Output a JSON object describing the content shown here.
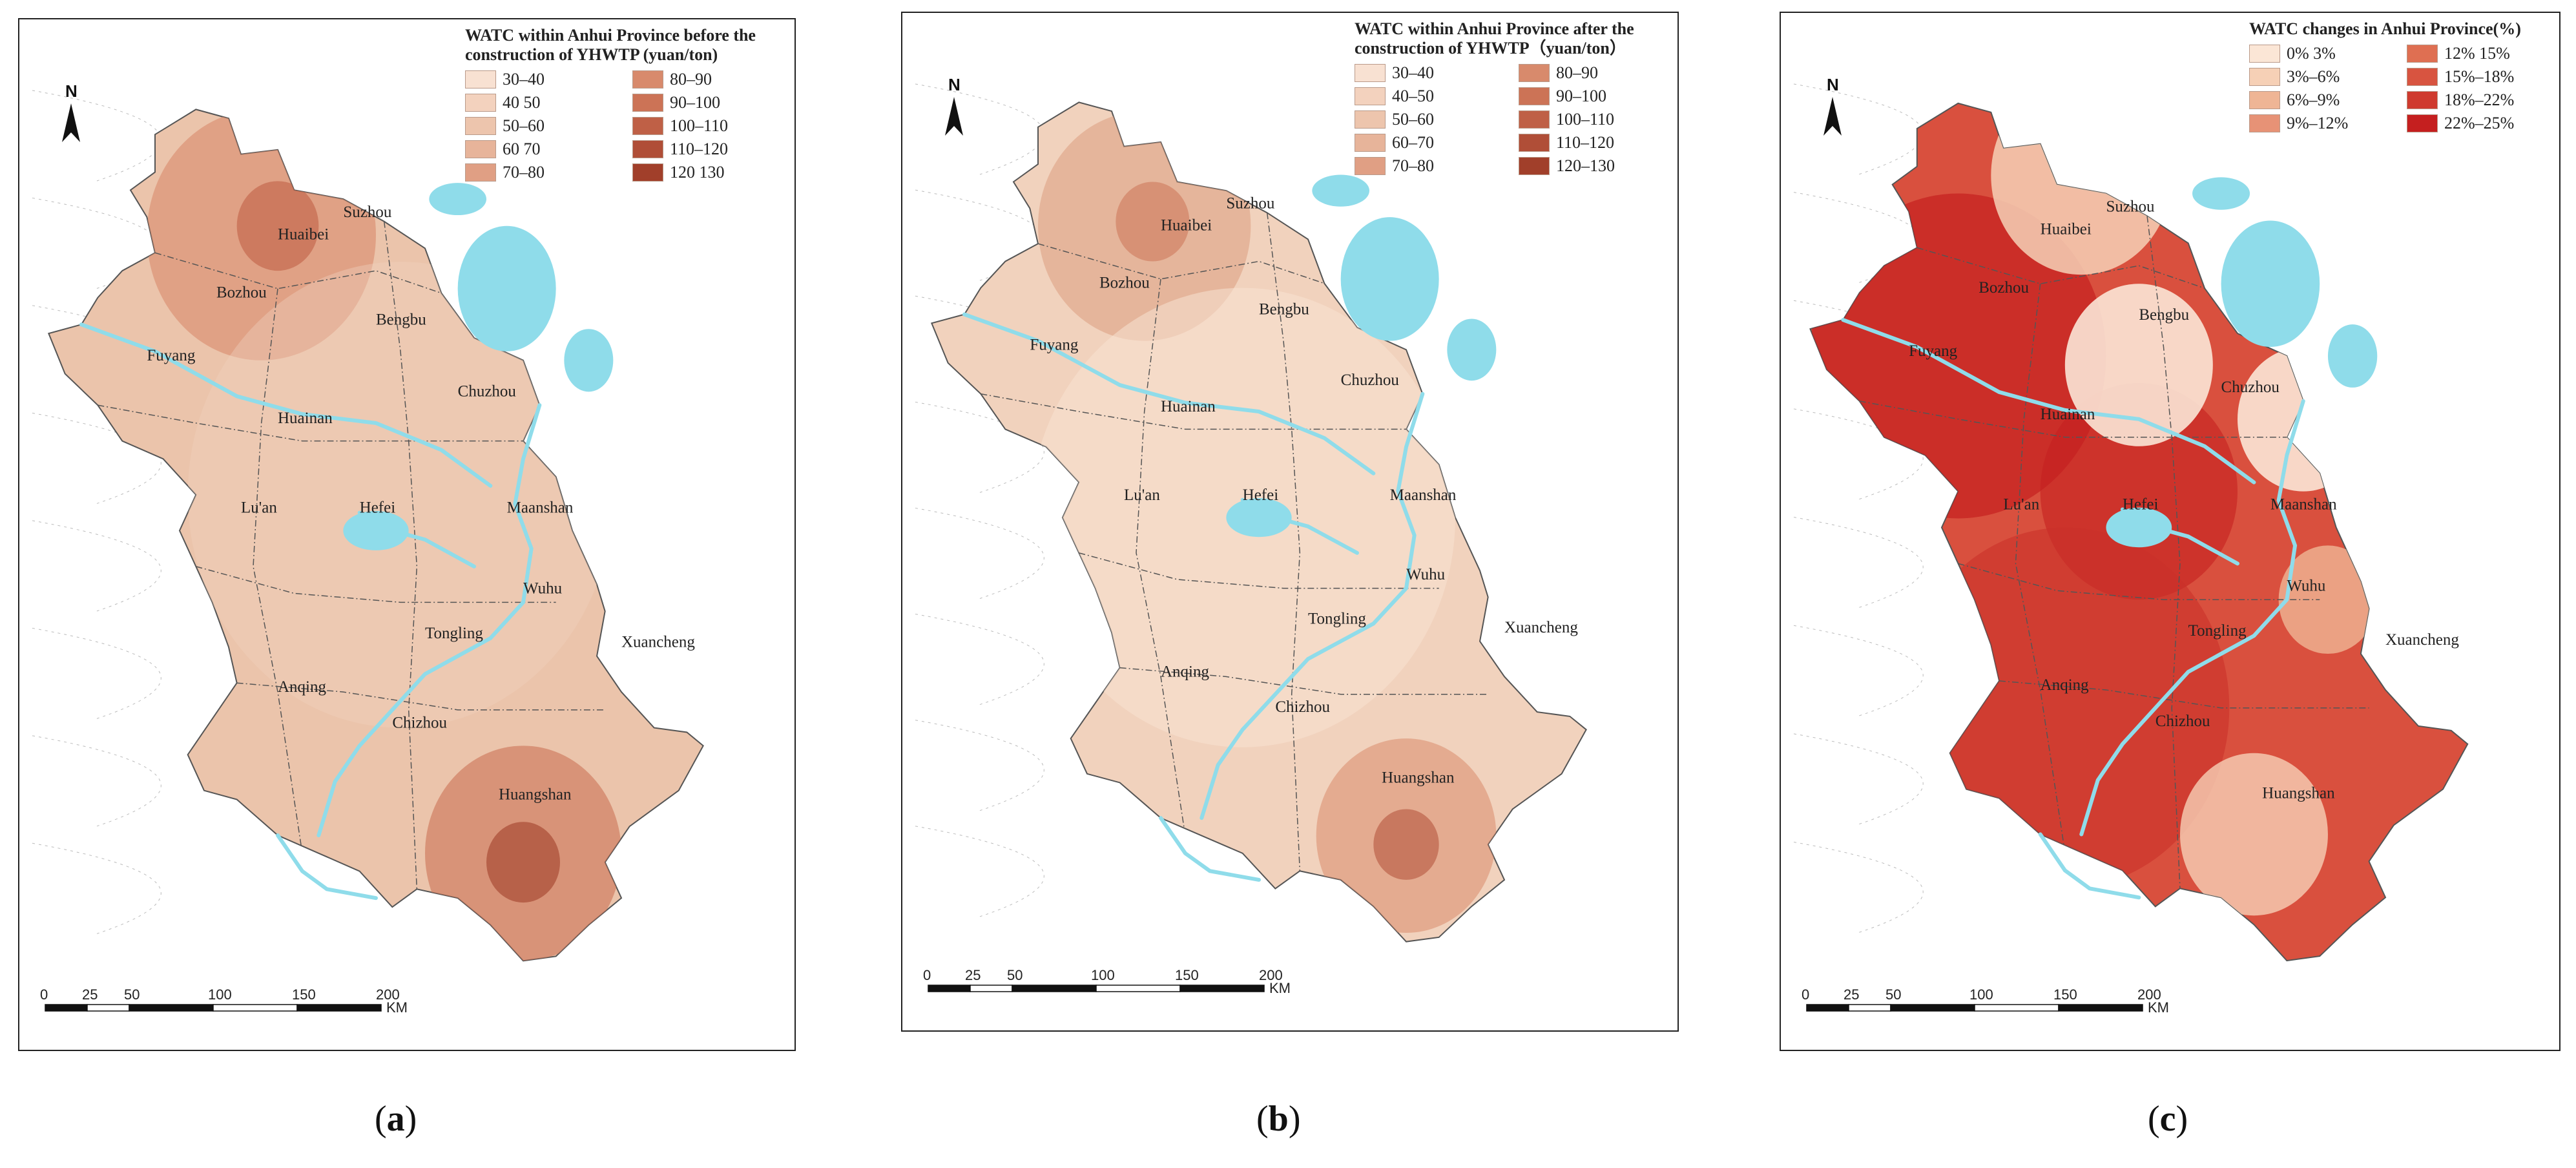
{
  "panels": [
    {
      "id": "a",
      "legend_title": "WATC within Anhui Province before the construction of YHWTP (yuan/ton)",
      "legend": [
        {
          "label": "30–40",
          "color": "#f8e1d2"
        },
        {
          "label": "80–90",
          "color": "#d88a6c"
        },
        {
          "label": "40  50",
          "color": "#f3d2be"
        },
        {
          "label": "90–100",
          "color": "#cc7356"
        },
        {
          "label": "50–60",
          "color": "#edc5ad"
        },
        {
          "label": "100–110",
          "color": "#bf6046"
        },
        {
          "label": "60  70",
          "color": "#e7b49a"
        },
        {
          "label": "110–120",
          "color": "#b04e37"
        },
        {
          "label": "70–80",
          "color": "#e09f84"
        },
        {
          "label": "120  130",
          "color": "#a13f2a"
        }
      ],
      "caption": "a"
    },
    {
      "id": "b",
      "legend_title": "WATC within Anhui Province after the construction of YHWTP（yuan/ton）",
      "legend": [
        {
          "label": "30–40",
          "color": "#f8e1d2"
        },
        {
          "label": "80–90",
          "color": "#d88a6c"
        },
        {
          "label": "40–50",
          "color": "#f3d2be"
        },
        {
          "label": "90–100",
          "color": "#cc7356"
        },
        {
          "label": "50–60",
          "color": "#edc5ad"
        },
        {
          "label": "100–110",
          "color": "#bf6046"
        },
        {
          "label": "60–70",
          "color": "#e7b49a"
        },
        {
          "label": "110–120",
          "color": "#b04e37"
        },
        {
          "label": "70–80",
          "color": "#e09f84"
        },
        {
          "label": "120–130",
          "color": "#a13f2a"
        }
      ],
      "caption": "b"
    },
    {
      "id": "c",
      "legend_title": "WATC changes in Anhui Province(%)",
      "legend": [
        {
          "label": "0%  3%",
          "color": "#fbe6d6"
        },
        {
          "label": "12%  15%",
          "color": "#df6f52"
        },
        {
          "label": "3%–6%",
          "color": "#f6d0b6"
        },
        {
          "label": "15%–18%",
          "color": "#d85440"
        },
        {
          "label": "6%–9%",
          "color": "#efb595"
        },
        {
          "label": "18%–22%",
          "color": "#cf3a2e"
        },
        {
          "label": "9%–12%",
          "color": "#e79276"
        },
        {
          "label": "22%–25%",
          "color": "#c51f1f"
        }
      ],
      "caption": "c"
    }
  ],
  "cities": [
    "Suzhou",
    "Huaibei",
    "Bozhou",
    "Bengbu",
    "Fuyang",
    "Chuzhou",
    "Huainan",
    "Lu'an",
    "Hefei",
    "Maanshan",
    "Wuhu",
    "Tongling",
    "Xuancheng",
    "Anqing",
    "Chizhou",
    "Huangshan"
  ],
  "scale_ticks": [
    "0",
    "25",
    "50",
    "100",
    "150",
    "200"
  ],
  "scale_unit": "KM",
  "north_label": "N",
  "colors": {
    "water": "#8fdcea",
    "border": "#444444"
  }
}
